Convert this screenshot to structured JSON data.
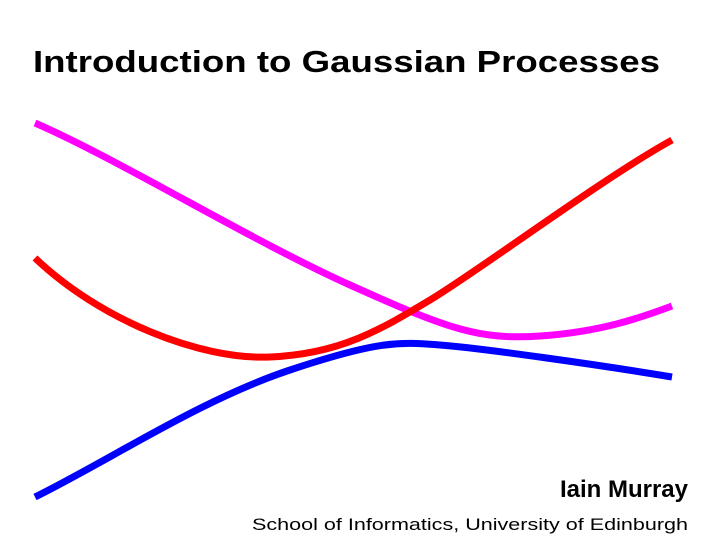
{
  "header": {
    "title": "Introduction to Gaussian Processes"
  },
  "author": {
    "name": "Iain Murray",
    "affiliation": "School of Informatics, University of Edinburgh"
  }
}
